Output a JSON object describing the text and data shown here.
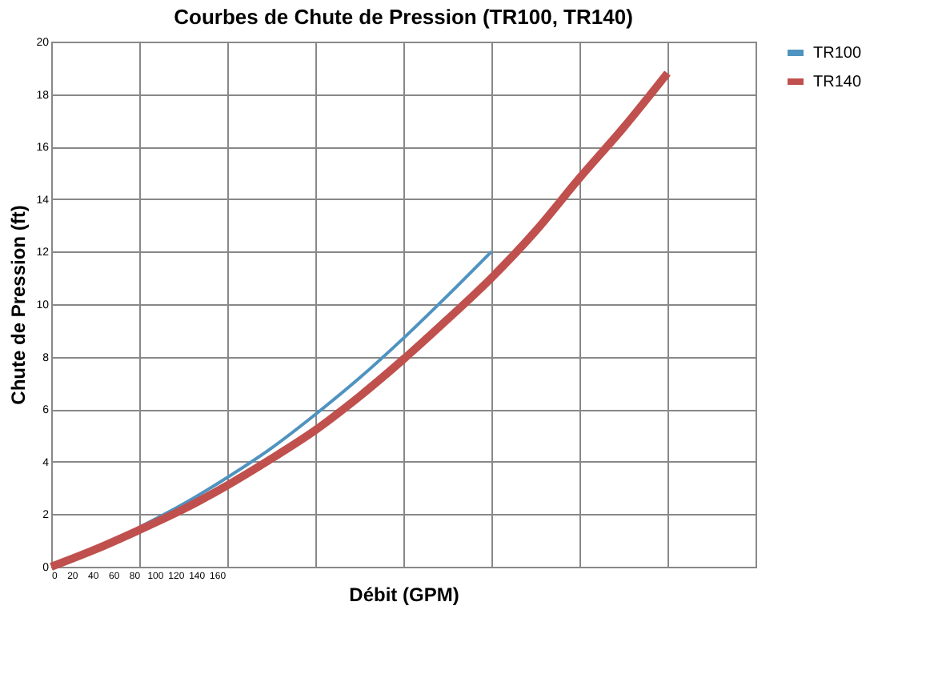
{
  "chart_data": {
    "type": "line",
    "title": "Courbes de Chute de Pression (TR100, TR140)",
    "xlabel": "Débit (GPM)",
    "ylabel": "Chute de Pression (ft)",
    "x": [
      0,
      42,
      85,
      128,
      170,
      212,
      255,
      298,
      340,
      382,
      425,
      468,
      510,
      552,
      595
    ],
    "series": [
      {
        "name": "TR100",
        "color": "#4f93c0",
        "values": [
          null,
          null,
          1.5,
          2.4,
          3.4,
          4.5,
          5.8,
          7.2,
          8.7,
          10.3,
          12,
          null,
          null,
          null,
          null
        ]
      },
      {
        "name": "TR140",
        "color": "#c0504d",
        "values": [
          0,
          0.65,
          1.4,
          2.2,
          3.1,
          4.1,
          5.2,
          6.5,
          7.9,
          9.4,
          11.0,
          12.8,
          14.8,
          16.7,
          18.8
        ]
      }
    ],
    "xlim": [
      0,
      680
    ],
    "xticks": [
      0,
      20,
      40,
      60,
      80,
      {
        "value": 85,
        "label": null
      },
      100,
      120,
      140,
      160,
      {
        "value": 170,
        "label": null
      },
      {
        "value": 255,
        "label": null
      },
      {
        "value": 340,
        "label": null
      },
      {
        "value": 425,
        "label": null
      },
      {
        "value": 510,
        "label": null
      },
      {
        "value": 595,
        "label": null
      }
    ],
    "ylim": [
      0,
      20
    ],
    "yticks": [
      0,
      2,
      4,
      6,
      8,
      10,
      12,
      14,
      16,
      18,
      20
    ],
    "grid": true,
    "legend": "right"
  }
}
